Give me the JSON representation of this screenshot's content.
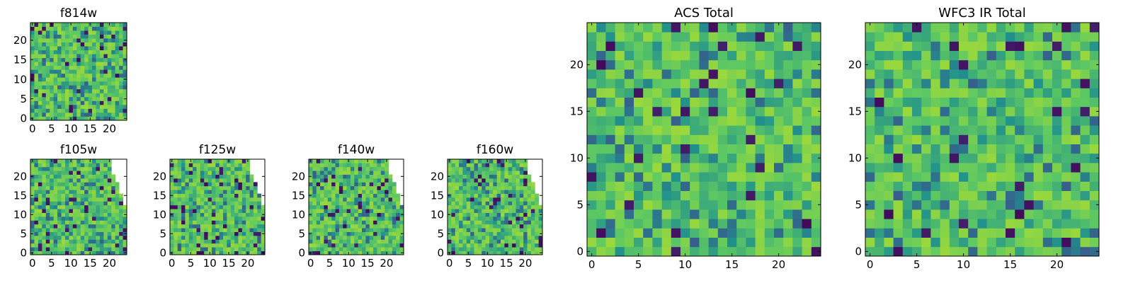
{
  "chart_data": [
    {
      "type": "heatmap",
      "title": "f814w",
      "size": 25,
      "xticks": [
        0,
        5,
        10,
        15,
        20
      ],
      "yticks": [
        0,
        5,
        10,
        15,
        20
      ],
      "colormap": "viridis",
      "ylim": [
        0,
        24
      ],
      "seed": 17
    },
    {
      "type": "heatmap",
      "title": "f105w",
      "size": 25,
      "xticks": [
        0,
        5,
        10,
        15,
        20
      ],
      "yticks": [
        0,
        5,
        10,
        15,
        20
      ],
      "colormap": "viridis",
      "ylim": [
        0,
        24
      ],
      "seed": 23,
      "row_extent": [
        24,
        24,
        24,
        24,
        24,
        24,
        24,
        24,
        24,
        24,
        24,
        24,
        24,
        23,
        23,
        23,
        22,
        22,
        22,
        21,
        21,
        20,
        20,
        20,
        20
      ]
    },
    {
      "type": "heatmap",
      "title": "f125w",
      "size": 25,
      "xticks": [
        0,
        5,
        10,
        15,
        20
      ],
      "yticks": [
        0,
        5,
        10,
        15,
        20
      ],
      "colormap": "viridis",
      "ylim": [
        0,
        24
      ],
      "seed": 29,
      "row_extent": [
        24,
        24,
        24,
        24,
        24,
        24,
        24,
        24,
        24,
        24,
        24,
        24,
        24,
        23,
        23,
        23,
        22,
        22,
        22,
        21,
        21,
        20,
        20,
        20,
        20
      ]
    },
    {
      "type": "heatmap",
      "title": "f140w",
      "size": 25,
      "xticks": [
        0,
        5,
        10,
        15,
        20
      ],
      "yticks": [
        0,
        5,
        10,
        15,
        20
      ],
      "colormap": "viridis",
      "ylim": [
        0,
        24
      ],
      "seed": 31,
      "row_extent": [
        24,
        24,
        24,
        24,
        24,
        24,
        24,
        24,
        24,
        24,
        24,
        24,
        24,
        23,
        23,
        23,
        22,
        22,
        22,
        21,
        21,
        20,
        20,
        20,
        20
      ]
    },
    {
      "type": "heatmap",
      "title": "f160w",
      "size": 25,
      "xticks": [
        0,
        5,
        10,
        15,
        20
      ],
      "yticks": [
        0,
        5,
        10,
        15,
        20
      ],
      "colormap": "viridis",
      "ylim": [
        0,
        24
      ],
      "seed": 37,
      "row_extent": [
        24,
        24,
        24,
        24,
        24,
        24,
        24,
        24,
        24,
        24,
        24,
        24,
        24,
        23,
        23,
        23,
        22,
        22,
        22,
        21,
        21,
        20,
        20,
        20,
        20
      ]
    },
    {
      "type": "heatmap",
      "title": "ACS Total",
      "size": 25,
      "xticks": [
        0,
        5,
        10,
        15,
        20
      ],
      "yticks": [
        0,
        5,
        10,
        15,
        20
      ],
      "colormap": "viridis",
      "ylim": [
        0,
        24
      ],
      "seed": 41
    },
    {
      "type": "heatmap",
      "title": "WFC3 IR Total",
      "size": 25,
      "xticks": [
        0,
        5,
        10,
        15,
        20
      ],
      "yticks": [
        0,
        5,
        10,
        15,
        20
      ],
      "colormap": "viridis",
      "ylim": [
        0,
        24
      ],
      "seed": 43
    }
  ],
  "colors": {
    "viridis_dark": "#440154",
    "viridis_blue": "#31688e",
    "viridis_teal": "#21918c",
    "viridis_green": "#35b779",
    "viridis_lime": "#90d743",
    "viridis_yellow": "#fde725"
  }
}
